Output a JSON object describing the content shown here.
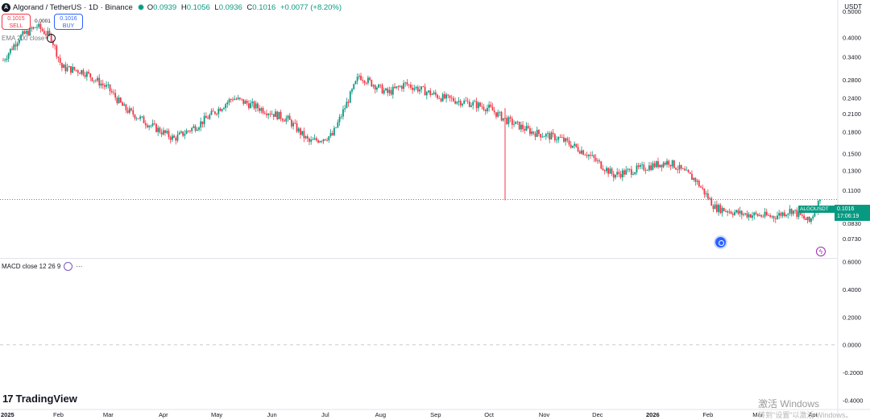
{
  "header": {
    "title": "Algorand / TetherUS · 1D · Binance",
    "open_k": "O",
    "open_v": "0.0939",
    "high_k": "H",
    "high_v": "0.1056",
    "low_k": "L",
    "low_v": "0.0936",
    "close_k": "C",
    "close_v": "0.1016",
    "change": "+0.0077 (+8.20%)",
    "logo_letter": "A"
  },
  "trade": {
    "sell_price": "0.1015",
    "sell_label": "SELL",
    "buy_price": "0.1016",
    "buy_label": "BUY",
    "spread": "0.0001"
  },
  "indicators": {
    "ema_label": "EMA 200 close",
    "macd_label": "MACD close 12 26 9",
    "more": "···"
  },
  "currency": "USDT",
  "price_label": {
    "symbol": "ALGOUSDT",
    "price": "0.1016",
    "countdown": "17:06:19"
  },
  "brand": "TradingView",
  "watermark": {
    "line1": "激活 Windows",
    "line2": "转到\"设置\"以激活 Windows。"
  },
  "colors": {
    "up": "#089981",
    "down": "#f23645",
    "accent": "#2962ff"
  },
  "chart_data": [
    {
      "type": "candlestick",
      "title": "Algorand / TetherUS · 1D · Binance",
      "scale": "log",
      "ylim": [
        0.062,
        0.52
      ],
      "y_ticks": [
        "0.5000",
        "0.4000",
        "0.3400",
        "0.2800",
        "0.2400",
        "0.2100",
        "0.1800",
        "0.1500",
        "0.1300",
        "0.1100",
        "0.0830",
        "0.0730"
      ],
      "x_ticks": [
        "2025",
        "Feb",
        "Mar",
        "Apr",
        "May",
        "Jun",
        "Jul",
        "Aug",
        "Sep",
        "Oct",
        "Nov",
        "Dec",
        "2026",
        "Feb",
        "Mar",
        "Apr"
      ],
      "closes_approx": [
        {
          "date": "2025-01-01",
          "close": 0.33
        },
        {
          "date": "2025-01-10",
          "close": 0.4
        },
        {
          "date": "2025-01-20",
          "close": 0.44
        },
        {
          "date": "2025-01-28",
          "close": 0.4
        },
        {
          "date": "2025-02-03",
          "close": 0.31
        },
        {
          "date": "2025-02-15",
          "close": 0.3
        },
        {
          "date": "2025-03-01",
          "close": 0.26
        },
        {
          "date": "2025-03-10",
          "close": 0.22
        },
        {
          "date": "2025-03-25",
          "close": 0.19
        },
        {
          "date": "2025-04-07",
          "close": 0.17
        },
        {
          "date": "2025-04-20",
          "close": 0.19
        },
        {
          "date": "2025-05-10",
          "close": 0.24
        },
        {
          "date": "2025-05-25",
          "close": 0.22
        },
        {
          "date": "2025-06-10",
          "close": 0.2
        },
        {
          "date": "2025-06-22",
          "close": 0.165
        },
        {
          "date": "2025-07-05",
          "close": 0.175
        },
        {
          "date": "2025-07-20",
          "close": 0.29
        },
        {
          "date": "2025-08-05",
          "close": 0.25
        },
        {
          "date": "2025-08-15",
          "close": 0.27
        },
        {
          "date": "2025-09-05",
          "close": 0.24
        },
        {
          "date": "2025-09-20",
          "close": 0.23
        },
        {
          "date": "2025-10-01",
          "close": 0.22
        },
        {
          "date": "2025-10-10",
          "close": 0.2
        },
        {
          "date": "2025-10-25",
          "close": 0.18
        },
        {
          "date": "2025-11-10",
          "close": 0.17
        },
        {
          "date": "2025-11-25",
          "close": 0.15
        },
        {
          "date": "2025-12-10",
          "close": 0.125
        },
        {
          "date": "2025-12-31",
          "close": 0.135
        },
        {
          "date": "2026-01-10",
          "close": 0.14
        },
        {
          "date": "2026-01-25",
          "close": 0.12
        },
        {
          "date": "2026-02-05",
          "close": 0.095
        },
        {
          "date": "2026-02-20",
          "close": 0.09
        },
        {
          "date": "2026-03-10",
          "close": 0.088
        },
        {
          "date": "2026-03-20",
          "close": 0.093
        },
        {
          "date": "2026-03-30",
          "close": 0.084
        },
        {
          "date": "2026-04-05",
          "close": 0.1016
        }
      ],
      "last_price": 0.1016
    },
    {
      "type": "line",
      "title": "MACD close 12 26 9",
      "y_ticks": [
        "0.6000",
        "0.4000",
        "0.2000",
        "0.0000",
        "-0.2000",
        "-0.4000"
      ],
      "ylim": [
        -0.42,
        0.62
      ],
      "zero_line": true
    }
  ]
}
